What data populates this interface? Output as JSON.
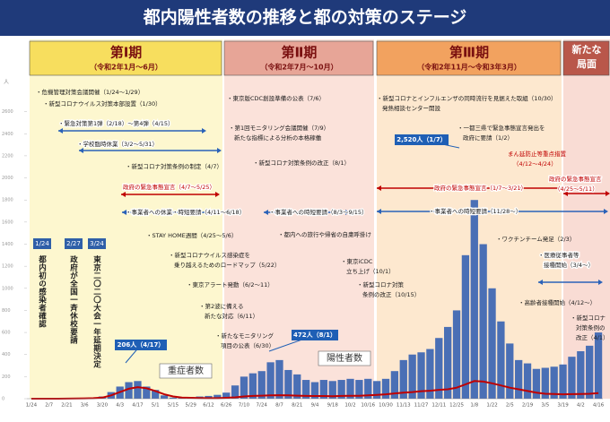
{
  "chart_data": {
    "type": "bar",
    "title": "都内陽性者数の推移と都の対策のステージ",
    "y_label": "人",
    "stages": [
      {
        "lines": [
          "第Ⅰ期"
        ],
        "period": "（令和2年1月～6月）"
      },
      {
        "lines": [
          "第Ⅱ期"
        ],
        "period": "（令和2年7月～10月）"
      },
      {
        "lines": [
          "第Ⅲ期"
        ],
        "period": "（令和2年11月～令和3年3月）"
      },
      {
        "lines": [
          "新たな",
          "局面"
        ]
      }
    ],
    "categories": [
      "1/24",
      null,
      "2/7",
      null,
      "2/21",
      null,
      "3/6",
      null,
      "3/20",
      null,
      "4/3",
      null,
      "4/17",
      null,
      "5/1",
      null,
      "5/15",
      null,
      "5/29",
      null,
      "6/12",
      null,
      "6/26",
      null,
      "7/10",
      null,
      "7/24",
      null,
      "8/7",
      null,
      "8/21",
      null,
      "9/4",
      null,
      "9/18",
      null,
      "10/2",
      null,
      "10/16",
      null,
      "10/30",
      null,
      "11/13",
      null,
      "11/27",
      null,
      "12/11",
      null,
      "12/25",
      null,
      "1/8",
      null,
      "1/22",
      null,
      "2/5",
      null,
      "2/19",
      null,
      "3/5",
      null,
      "3/19",
      null,
      "4/2",
      null,
      "4/16"
    ],
    "series": [
      {
        "name": "陽性者数",
        "color": "#4a6fb5",
        "values": [
          0,
          1,
          1,
          2,
          2,
          3,
          5,
          6,
          20,
          60,
          110,
          150,
          160,
          110,
          80,
          30,
          10,
          8,
          15,
          20,
          25,
          35,
          55,
          120,
          200,
          230,
          250,
          330,
          350,
          260,
          220,
          170,
          150,
          170,
          160,
          170,
          180,
          170,
          180,
          160,
          180,
          250,
          350,
          400,
          420,
          450,
          550,
          650,
          800,
          1300,
          1800,
          1400,
          1000,
          700,
          500,
          350,
          320,
          270,
          280,
          290,
          310,
          380,
          430,
          480,
          600
        ]
      },
      {
        "name": "重症者数",
        "color": "#c00000",
        "values": [
          0,
          0,
          0,
          0,
          1,
          2,
          3,
          5,
          10,
          30,
          60,
          90,
          105,
          95,
          70,
          40,
          20,
          10,
          8,
          6,
          5,
          5,
          8,
          12,
          20,
          25,
          28,
          30,
          32,
          30,
          28,
          25,
          24,
          24,
          23,
          25,
          26,
          27,
          30,
          35,
          40,
          48,
          55,
          60,
          68,
          72,
          80,
          85,
          100,
          130,
          160,
          155,
          140,
          120,
          100,
          85,
          70,
          55,
          45,
          42,
          40,
          41,
          42,
          45,
          50
        ]
      }
    ],
    "ylim": [
      0,
      2800
    ],
    "yticks": [
      0,
      200,
      400,
      600,
      800,
      1000,
      1200,
      1400,
      1600,
      1800,
      2000,
      2200,
      2400,
      2600
    ],
    "callouts": [
      "206人（4/17）",
      "472人（8/1）",
      "2,520人（1/7）"
    ],
    "events": [
      {
        "date": "1/24",
        "lines": [
          "都内初の感染者確認"
        ]
      },
      {
        "date": "2/27",
        "lines": [
          "政府が全国一斉休校要請"
        ]
      },
      {
        "date": "3/24",
        "lines": [
          "東京二〇二〇大会一年延期決定"
        ]
      }
    ],
    "annotations": [
      {
        "lines": [
          "・危機管理対策会議開催（1/24～1/29）"
        ]
      },
      {
        "lines": [
          "・新型コロナウイルス対策本部設置（1/30）"
        ]
      },
      {
        "lines": [
          "・緊急対策第1弾（2/18）～第4弾（4/15）"
        ]
      },
      {
        "lines": [
          "・学校臨時休業（3/2～5/31）"
        ]
      },
      {
        "lines": [
          "・新型コロナ対策条例の制定（4/7）"
        ]
      },
      {
        "lines": [
          "政府の緊急事態宣言（4/7～5/25）"
        ],
        "color": "#c00000"
      },
      {
        "lines": [
          "・事業者への休業・時短要請（4/11～6/18）"
        ]
      },
      {
        "lines": [
          "・STAY HOME週間（4/25～5/6）"
        ]
      },
      {
        "lines": [
          "・新型コロナウイルス感染症を",
          "乗り越えるためのロードマップ（5/22）"
        ]
      },
      {
        "lines": [
          "・東京アラート発動（6/2～11）"
        ]
      },
      {
        "lines": [
          "・第2波に備える",
          "新たな対応（6/11）"
        ]
      },
      {
        "lines": [
          "・東京版CDC創設準備の公表（7/6）"
        ]
      },
      {
        "lines": [
          "・第1回モニタリング会議開催（7/9）",
          "新たな指標による分析の本格稼働"
        ]
      },
      {
        "lines": [
          "・新型コロナ対策条例の改正（8/1）"
        ]
      },
      {
        "lines": [
          "・事業者への時短要請（8/3～9/15）"
        ]
      },
      {
        "lines": [
          "・都内への旅行や帰省の自粛呼掛け"
        ]
      },
      {
        "lines": [
          "・東京iCDC",
          "立ち上げ（10/1）"
        ]
      },
      {
        "lines": [
          "・新型コロナ対策",
          "条例の改正（10/15）"
        ]
      },
      {
        "lines": [
          "・新たなモニタリング",
          "項目の公表（6/30）"
        ]
      },
      {
        "lines": [
          "・新型コロナとインフルエンザの同時流行を見据えた取組（10/30）",
          "発熱相談センター開設"
        ]
      },
      {
        "lines": [
          "・一都三県で緊急事態宣言発出を",
          "政府に要請（1/2）"
        ]
      },
      {
        "lines": [
          "まん延防止等重点措置",
          "（4/12～4/24）"
        ],
        "color": "#c00000"
      },
      {
        "lines": [
          "政府の緊急事態宣言（1/7～3/21）"
        ],
        "color": "#c00000"
      },
      {
        "lines": [
          "政府の緊急事態宣言",
          "（4/25～5/11）"
        ],
        "color": "#c00000"
      },
      {
        "lines": [
          "・事業者への時短要請（11/28～）"
        ]
      },
      {
        "lines": [
          "・ワクチンチーム発足（2/3）"
        ]
      },
      {
        "lines": [
          "・医療従事者等",
          "接種開始（3/4～）"
        ]
      },
      {
        "lines": [
          "・高齢者接種開始（4/12～）"
        ]
      },
      {
        "lines": [
          "・新型コロナ",
          "対策条例の",
          "改正（4/1）"
        ]
      }
    ]
  }
}
